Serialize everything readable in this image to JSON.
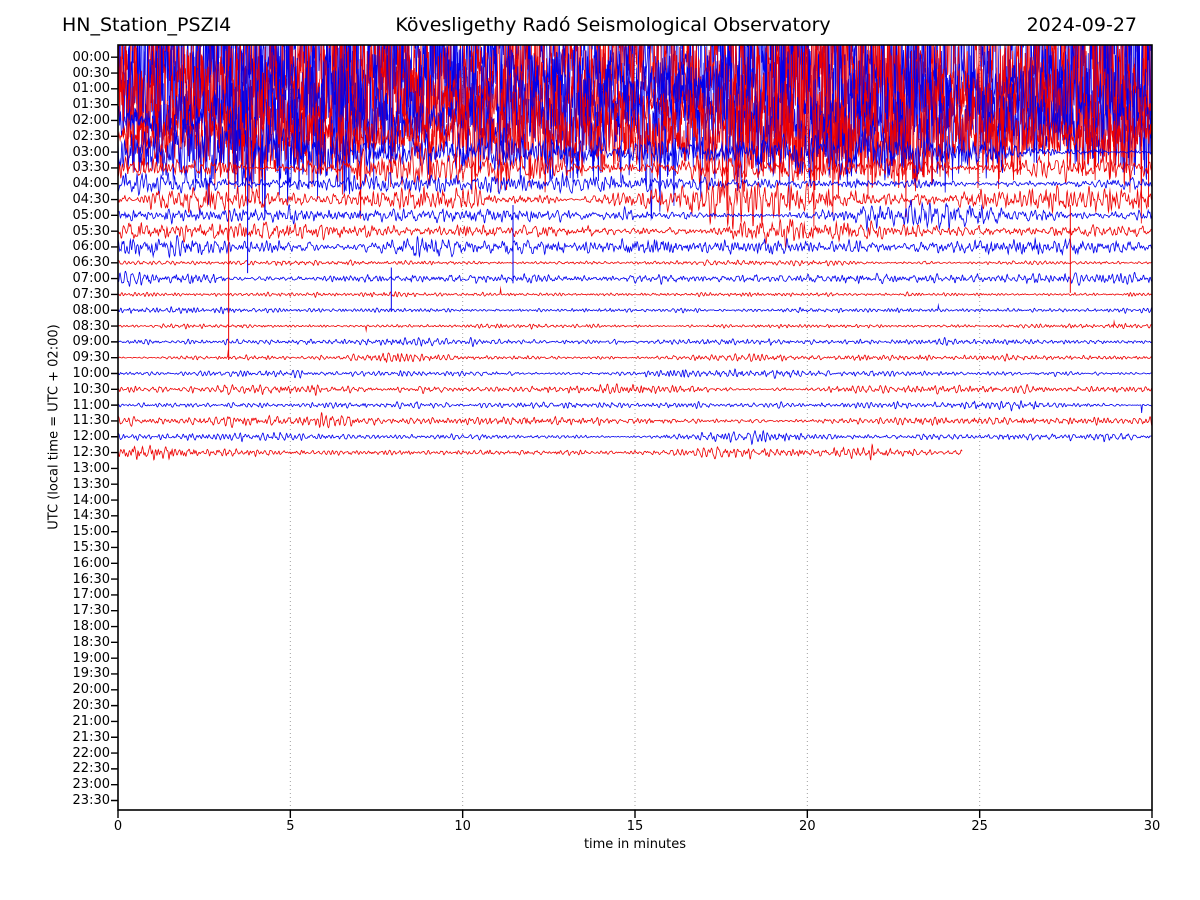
{
  "chart_data": {
    "type": "line",
    "subtype": "helicorder-seismogram",
    "station": "HN_Station_PSZI4",
    "title": "Kövesligethy Radó Seismological Observatory",
    "date": "2024-09-27",
    "xlabel": "time in minutes",
    "ylabel": "UTC (local time = UTC + 02:00)",
    "x_range": [
      0,
      30
    ],
    "x_ticks": [
      0,
      5,
      10,
      15,
      20,
      25,
      30
    ],
    "grid_minutes": [
      5,
      10,
      15,
      20,
      25
    ],
    "minutes_per_row": 30,
    "grid_on": true,
    "grid_color": "#a0a0a0",
    "trace_colors": {
      "even": "#0000ee",
      "odd": "#ee0000"
    },
    "rows": [
      {
        "t": "00:00",
        "end": 30,
        "a": 105,
        "f": 1,
        "wb": 300,
        "e": 0.5,
        "b": []
      },
      {
        "t": "00:30",
        "end": 30,
        "a": 105,
        "f": 1,
        "wb": 300,
        "e": 0.5,
        "b": []
      },
      {
        "t": "01:00",
        "end": 30,
        "a": 95,
        "f": 1,
        "wb": 300,
        "e": 0.5,
        "b": []
      },
      {
        "t": "01:30",
        "end": 30,
        "a": 90,
        "f": 1,
        "wb": 300,
        "e": 0.55,
        "b": []
      },
      {
        "t": "02:00",
        "end": 30,
        "a": 80,
        "f": 1,
        "wb": 280,
        "e": 0.6,
        "b": []
      },
      {
        "t": "02:30",
        "end": 30,
        "a": 55,
        "f": 1,
        "wb": 250,
        "e": 0.6,
        "b": []
      },
      {
        "t": "03:00",
        "end": 30,
        "a": 28,
        "f": 2,
        "wb": 150,
        "e": 0.8,
        "b": [
          [
            1.5,
            1.5,
            1.2
          ],
          [
            14,
            2,
            0.8
          ],
          [
            22,
            2,
            0.7
          ]
        ]
      },
      {
        "t": "03:30",
        "end": 30,
        "a": 14,
        "f": 3,
        "wb": 60,
        "e": 0.6,
        "b": [
          [
            7,
            1.5,
            0.8
          ],
          [
            12,
            1,
            0.6
          ]
        ]
      },
      {
        "t": "04:00",
        "end": 30,
        "a": 9,
        "f": 3,
        "wb": 60,
        "e": 0.5,
        "b": [
          [
            0.8,
            1,
            0.8
          ]
        ]
      },
      {
        "t": "04:30",
        "end": 30,
        "a": 15,
        "f": 3,
        "wb": 60,
        "e": 0.6,
        "b": [
          [
            1.5,
            1.5,
            1.0
          ],
          [
            11,
            2,
            0.5
          ],
          [
            17.9,
            1,
            0.9
          ],
          [
            27,
            2,
            0.7
          ]
        ]
      },
      {
        "t": "05:00",
        "end": 30,
        "a": 9,
        "f": 3,
        "wb": 50,
        "e": 0.5,
        "b": [
          [
            5,
            1,
            0.7
          ],
          [
            23,
            2,
            0.6
          ]
        ]
      },
      {
        "t": "05:30",
        "end": 30,
        "a": 9,
        "f": 3,
        "wb": 50,
        "e": 0.5,
        "b": [
          [
            19.2,
            1,
            1.2
          ],
          [
            22,
            1,
            0.5
          ]
        ]
      },
      {
        "t": "06:00",
        "end": 30,
        "a": 9,
        "f": 3,
        "wb": 50,
        "e": 0.5,
        "b": [
          [
            1.5,
            1.5,
            1.0
          ],
          [
            8.5,
            1,
            0.9
          ],
          [
            25,
            2,
            0.5
          ]
        ]
      },
      {
        "t": "06:30",
        "end": 30,
        "a": 2.6,
        "f": 4,
        "wb": 20,
        "e": 0.4,
        "b": []
      },
      {
        "t": "07:00",
        "end": 30,
        "a": 5.5,
        "f": 3,
        "wb": 30,
        "e": 0.5,
        "b": [
          [
            1,
            1.5,
            1.2
          ],
          [
            11.5,
            0.5,
            0.6
          ]
        ]
      },
      {
        "t": "07:30",
        "end": 30,
        "a": 2.2,
        "f": 4,
        "wb": 15,
        "e": 0.35,
        "b": [],
        "s": [
          [
            11.1,
            5
          ]
        ]
      },
      {
        "t": "08:00",
        "end": 30,
        "a": 2.6,
        "f": 4,
        "wb": 15,
        "e": 0.4,
        "b": [],
        "s": [
          [
            23.8,
            4
          ]
        ]
      },
      {
        "t": "08:30",
        "end": 30,
        "a": 2.2,
        "f": 4,
        "wb": 15,
        "e": 0.35,
        "b": [],
        "s": [
          [
            7.2,
            -4
          ],
          [
            28.9,
            5
          ]
        ]
      },
      {
        "t": "09:00",
        "end": 30,
        "a": 3.4,
        "f": 4,
        "wb": 18,
        "e": 0.5,
        "b": [
          [
            20,
            2,
            0.6
          ]
        ]
      },
      {
        "t": "09:30",
        "end": 30,
        "a": 3.4,
        "f": 4,
        "wb": 18,
        "e": 0.5,
        "b": [
          [
            8.3,
            0.8,
            1.2
          ],
          [
            19.8,
            1.5,
            0.9
          ]
        ],
        "s": [
          [
            3.2,
            7
          ]
        ]
      },
      {
        "t": "10:00",
        "end": 30,
        "a": 3.4,
        "f": 4,
        "wb": 18,
        "e": 0.5,
        "b": [
          [
            4,
            1,
            0.5
          ],
          [
            15.8,
            1.5,
            1.0
          ]
        ]
      },
      {
        "t": "10:30",
        "end": 30,
        "a": 4.5,
        "f": 4,
        "wb": 20,
        "e": 0.6,
        "b": [
          [
            3.8,
            1.2,
            1.2
          ],
          [
            8.3,
            0.8,
            0.8
          ],
          [
            14,
            1,
            0.5
          ]
        ]
      },
      {
        "t": "11:00",
        "end": 30,
        "a": 3.6,
        "f": 4,
        "wb": 18,
        "e": 0.5,
        "b": [
          [
            21,
            2.5,
            0.7
          ],
          [
            26,
            1,
            0.5
          ]
        ],
        "s": [
          [
            29.7,
            -7
          ]
        ]
      },
      {
        "t": "11:30",
        "end": 30,
        "a": 5,
        "f": 4,
        "wb": 20,
        "e": 0.6,
        "b": [
          [
            4,
            1.5,
            1.0
          ],
          [
            8,
            1.5,
            0.9
          ],
          [
            12,
            1,
            0.6
          ]
        ]
      },
      {
        "t": "12:00",
        "end": 30,
        "a": 4.2,
        "f": 4,
        "wb": 20,
        "e": 0.55,
        "b": [
          [
            4.3,
            0.8,
            1.0
          ],
          [
            18.4,
            1.2,
            1.1
          ],
          [
            28,
            0.8,
            0.7
          ]
        ]
      },
      {
        "t": "12:30",
        "end": 24.5,
        "a": 5,
        "f": 4,
        "wb": 20,
        "e": 0.5,
        "b": [
          [
            1.2,
            0.6,
            1.2
          ],
          [
            18,
            1.5,
            0.6
          ],
          [
            21.7,
            0.7,
            2.2
          ]
        ]
      },
      {
        "t": "13:00",
        "end": 0
      },
      {
        "t": "13:30",
        "end": 0
      },
      {
        "t": "14:00",
        "end": 0
      },
      {
        "t": "14:30",
        "end": 0
      },
      {
        "t": "15:00",
        "end": 0
      },
      {
        "t": "15:30",
        "end": 0
      },
      {
        "t": "16:00",
        "end": 0
      },
      {
        "t": "16:30",
        "end": 0
      },
      {
        "t": "17:00",
        "end": 0
      },
      {
        "t": "17:30",
        "end": 0
      },
      {
        "t": "18:00",
        "end": 0
      },
      {
        "t": "18:30",
        "end": 0
      },
      {
        "t": "19:00",
        "end": 0
      },
      {
        "t": "19:30",
        "end": 0
      },
      {
        "t": "20:00",
        "end": 0
      },
      {
        "t": "20:30",
        "end": 0
      },
      {
        "t": "21:00",
        "end": 0
      },
      {
        "t": "21:30",
        "end": 0
      },
      {
        "t": "22:00",
        "end": 0
      },
      {
        "t": "22:30",
        "end": 0
      },
      {
        "t": "23:00",
        "end": 0
      },
      {
        "t": "23:30",
        "end": 0
      }
    ],
    "artifacts": [
      {
        "color": "red",
        "minute": 3.21,
        "row_from": 4.6,
        "row_to": 19.15
      },
      {
        "color": "blue",
        "minute": 3.76,
        "row_from": 2.9,
        "row_to": 13.65
      },
      {
        "color": "blue",
        "minute": 11.46,
        "row_from": 9.35,
        "row_to": 14.3
      },
      {
        "color": "blue",
        "minute": 7.93,
        "row_from": 13.3,
        "row_to": 16.1
      },
      {
        "color": "red",
        "minute": 27.63,
        "row_from": 9.35,
        "row_to": 14.9
      }
    ]
  }
}
